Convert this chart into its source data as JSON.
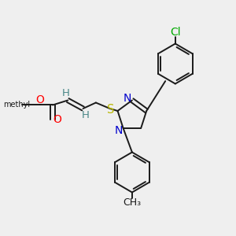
{
  "fig_bg": "#efefef",
  "bond_color": "#1a1a1a",
  "bond_lw": 1.4,
  "atom_colors": {
    "O": "#ff0000",
    "N": "#0000cc",
    "S": "#b8b800",
    "Cl": "#00aa00",
    "H": "#4a8888",
    "C": "#1a1a1a"
  }
}
